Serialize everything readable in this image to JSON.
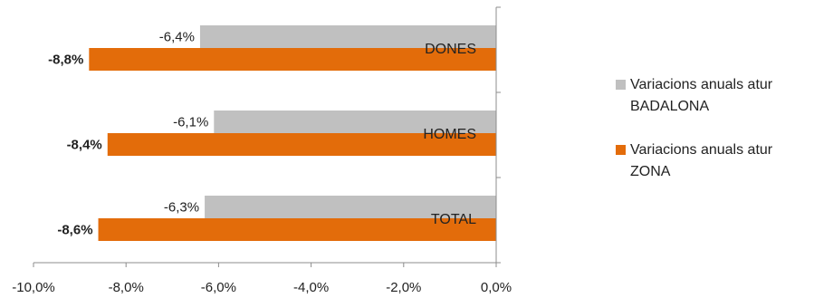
{
  "chart_data": {
    "type": "bar",
    "orientation": "horizontal",
    "categories": [
      "DONES",
      "HOMES",
      "TOTAL"
    ],
    "series": [
      {
        "name": "Variacions anuals atur BADALONA",
        "color": "#c0c0c0",
        "values": [
          -6.4,
          -6.1,
          -6.3
        ],
        "labels": [
          "-6,4%",
          "-6,1%",
          "-6,3%"
        ]
      },
      {
        "name": "Variacions anuals atur ZONA",
        "color": "#e36c0a",
        "values": [
          -8.8,
          -8.4,
          -8.6
        ],
        "labels": [
          "-8,8%",
          "-8,4%",
          "-8,6%"
        ]
      }
    ],
    "xlim": [
      -10,
      0
    ],
    "x_ticks": [
      -10,
      -8,
      -6,
      -4,
      -2,
      0
    ],
    "x_tick_labels": [
      "-10,0%",
      "-8,0%",
      "-6,0%",
      "-4,0%",
      "-2,0%",
      "0,0%"
    ],
    "legend": {
      "position": "right",
      "items": [
        {
          "line1": "Variacions anuals atur",
          "line2": "BADALONA",
          "color": "#c0c0c0"
        },
        {
          "line1": "Variacions anuals atur",
          "line2": "ZONA",
          "color": "#e36c0a"
        }
      ]
    },
    "grid": false
  }
}
